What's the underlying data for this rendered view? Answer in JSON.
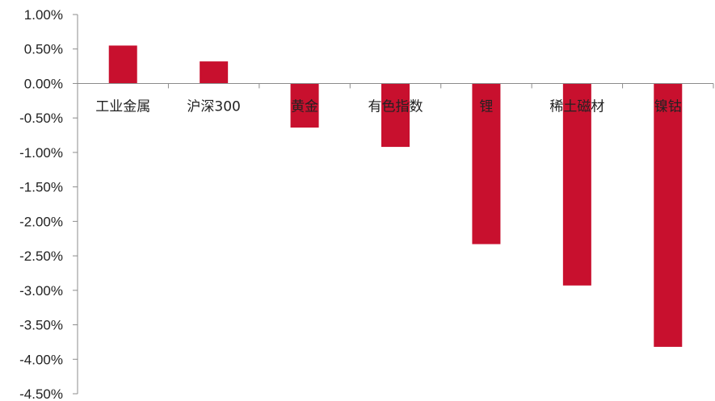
{
  "chart_data": {
    "type": "bar",
    "categories": [
      "工业金属",
      "沪深300",
      "黄金",
      "有色指数",
      "锂",
      "稀土磁材",
      "镍钴"
    ],
    "values": [
      0.55,
      0.32,
      -0.64,
      -0.92,
      -2.33,
      -2.93,
      -3.82
    ],
    "ylim": [
      -4.5,
      1.0
    ],
    "yticks": [
      1.0,
      0.5,
      0.0,
      -0.5,
      -1.0,
      -1.5,
      -2.0,
      -2.5,
      -3.0,
      -3.5,
      -4.0,
      -4.5
    ],
    "ytick_labels": [
      "1.00%",
      "0.50%",
      "0.00%",
      "-0.50%",
      "-1.00%",
      "-1.50%",
      "-2.00%",
      "-2.50%",
      "-3.00%",
      "-3.50%",
      "-4.00%",
      "-4.50%"
    ],
    "title": "",
    "xlabel": "",
    "ylabel": "",
    "grid": false,
    "bar_color": "#C8102E"
  }
}
